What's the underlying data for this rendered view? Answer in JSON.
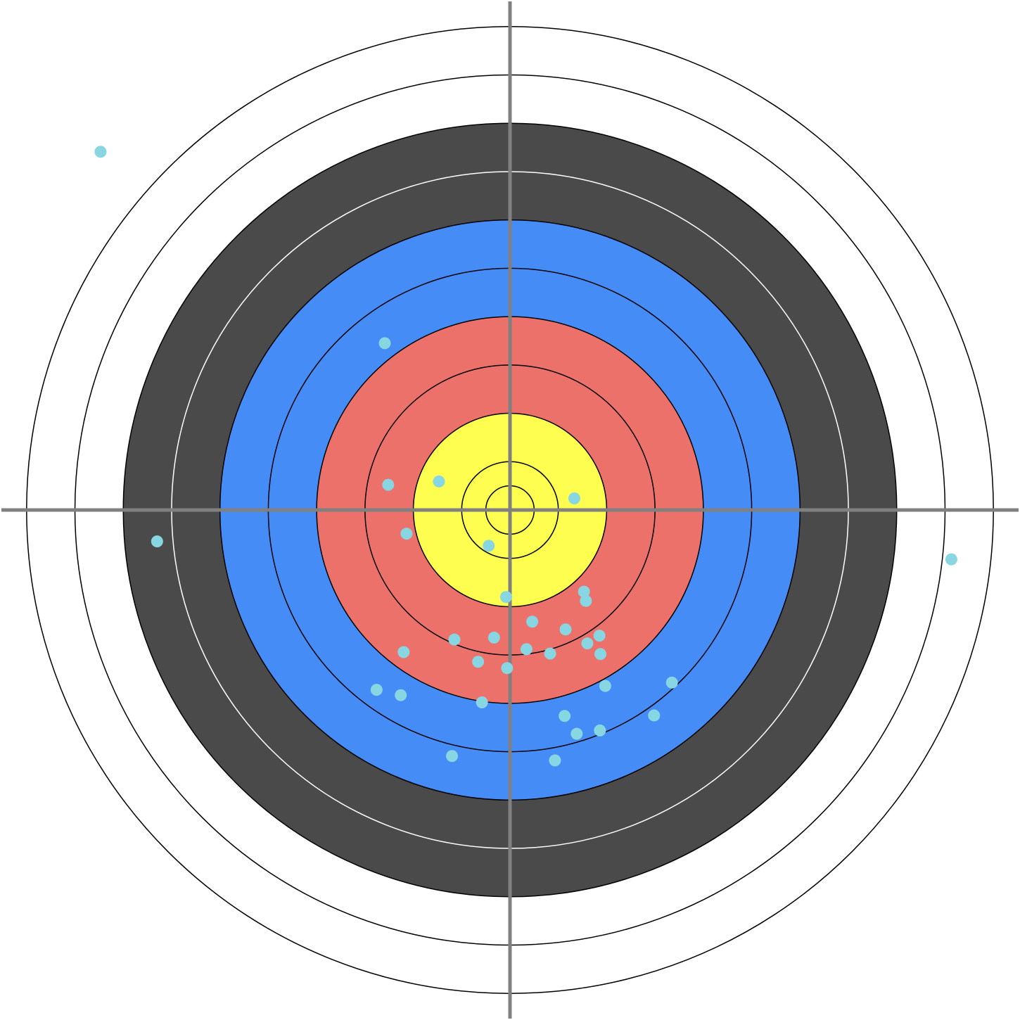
{
  "chart_data": {
    "type": "scatter",
    "title": "",
    "xlabel": "",
    "ylabel": "",
    "xlim": [
      -1.055,
      1.055
    ],
    "ylim": [
      -1.055,
      1.055
    ],
    "grid": false,
    "legend": "none",
    "axes_visible": false,
    "target": {
      "rings": [
        {
          "outer_radius": 1.0,
          "fill": "#ffffff",
          "edge": "#000000"
        },
        {
          "outer_radius": 0.9,
          "fill": "#ffffff",
          "edge": "#000000"
        },
        {
          "outer_radius": 0.8,
          "fill": "#4a4a4a",
          "edge": "#000000"
        },
        {
          "outer_radius": 0.7,
          "fill": "#4a4a4a",
          "edge": "#ffffff"
        },
        {
          "outer_radius": 0.6,
          "fill": "#468cf6",
          "edge": "#000000"
        },
        {
          "outer_radius": 0.5,
          "fill": "#468cf6",
          "edge": "#000000"
        },
        {
          "outer_radius": 0.4,
          "fill": "#ed716b",
          "edge": "#000000"
        },
        {
          "outer_radius": 0.3,
          "fill": "#ed716b",
          "edge": "#000000"
        },
        {
          "outer_radius": 0.2,
          "fill": "#fefe51",
          "edge": "#000000"
        },
        {
          "outer_radius": 0.1,
          "fill": "#fefe51",
          "edge": "#000000"
        },
        {
          "outer_radius": 0.05,
          "fill": "#fefe51",
          "edge": "#000000"
        }
      ],
      "crosshair_color": "#808080"
    },
    "series": [
      {
        "marker_color": "#87d6e2",
        "points": [
          {
            "x": -0.847,
            "y": 0.741
          },
          {
            "x": -0.259,
            "y": 0.345
          },
          {
            "x": -0.252,
            "y": 0.052
          },
          {
            "x": -0.147,
            "y": 0.059
          },
          {
            "x": 0.133,
            "y": 0.024
          },
          {
            "x": -0.214,
            "y": -0.049
          },
          {
            "x": -0.73,
            "y": -0.065
          },
          {
            "x": -0.044,
            "y": -0.074
          },
          {
            "x": 0.913,
            "y": -0.102
          },
          {
            "x": 0.153,
            "y": -0.169
          },
          {
            "x": 0.157,
            "y": -0.188
          },
          {
            "x": -0.008,
            "y": -0.18
          },
          {
            "x": 0.046,
            "y": -0.231
          },
          {
            "x": 0.115,
            "y": -0.247
          },
          {
            "x": 0.185,
            "y": -0.26
          },
          {
            "x": -0.033,
            "y": -0.264
          },
          {
            "x": -0.115,
            "y": -0.268
          },
          {
            "x": 0.16,
            "y": -0.276
          },
          {
            "x": 0.034,
            "y": -0.288
          },
          {
            "x": 0.083,
            "y": -0.297
          },
          {
            "x": 0.187,
            "y": -0.298
          },
          {
            "x": -0.22,
            "y": -0.294
          },
          {
            "x": -0.066,
            "y": -0.314
          },
          {
            "x": -0.006,
            "y": -0.327
          },
          {
            "x": 0.197,
            "y": -0.364
          },
          {
            "x": 0.335,
            "y": -0.357
          },
          {
            "x": -0.276,
            "y": -0.372
          },
          {
            "x": -0.226,
            "y": -0.383
          },
          {
            "x": -0.058,
            "y": -0.398
          },
          {
            "x": 0.113,
            "y": -0.426
          },
          {
            "x": 0.298,
            "y": -0.425
          },
          {
            "x": 0.138,
            "y": -0.463
          },
          {
            "x": 0.186,
            "y": -0.456
          },
          {
            "x": -0.12,
            "y": -0.509
          },
          {
            "x": 0.093,
            "y": -0.518
          }
        ]
      }
    ]
  }
}
